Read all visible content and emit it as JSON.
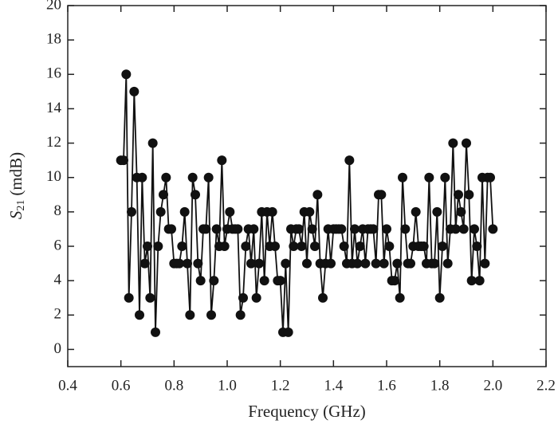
{
  "chart_data": {
    "type": "line",
    "xlabel": "Frequency (GHz)",
    "ylabel": {
      "main": "S",
      "sub": "21",
      "unit": "(mdB)"
    },
    "color": "#111111",
    "marker": "circle",
    "x": [
      0.6,
      0.61,
      0.62,
      0.63,
      0.64,
      0.65,
      0.66,
      0.67,
      0.68,
      0.69,
      0.7,
      0.71,
      0.72,
      0.73,
      0.74,
      0.75,
      0.76,
      0.77,
      0.78,
      0.79,
      0.8,
      0.81,
      0.82,
      0.83,
      0.84,
      0.85,
      0.86,
      0.87,
      0.88,
      0.89,
      0.9,
      0.91,
      0.92,
      0.93,
      0.94,
      0.95,
      0.96,
      0.97,
      0.98,
      0.99,
      1.0,
      1.01,
      1.02,
      1.03,
      1.04,
      1.05,
      1.06,
      1.07,
      1.08,
      1.09,
      1.1,
      1.11,
      1.12,
      1.13,
      1.14,
      1.15,
      1.16,
      1.17,
      1.18,
      1.19,
      1.2,
      1.21,
      1.22,
      1.23,
      1.24,
      1.25,
      1.26,
      1.27,
      1.28,
      1.29,
      1.3,
      1.31,
      1.32,
      1.33,
      1.34,
      1.35,
      1.36,
      1.37,
      1.38,
      1.39,
      1.4,
      1.41,
      1.42,
      1.43,
      1.44,
      1.45,
      1.46,
      1.47,
      1.48,
      1.49,
      1.5,
      1.51,
      1.52,
      1.53,
      1.54,
      1.55,
      1.56,
      1.57,
      1.58,
      1.59,
      1.6,
      1.61,
      1.62,
      1.63,
      1.64,
      1.65,
      1.66,
      1.67,
      1.68,
      1.69,
      1.7,
      1.71,
      1.72,
      1.73,
      1.74,
      1.75,
      1.76,
      1.77,
      1.78,
      1.79,
      1.8,
      1.81,
      1.82,
      1.83,
      1.84,
      1.85,
      1.86,
      1.87,
      1.88,
      1.89,
      1.9,
      1.91,
      1.92,
      1.93,
      1.94,
      1.95,
      1.96,
      1.97,
      1.98,
      1.99,
      2.0
    ],
    "values": [
      11,
      11,
      16,
      3,
      8,
      15,
      10,
      2,
      10,
      5,
      6,
      3,
      12,
      1,
      6,
      8,
      9,
      10,
      7,
      7,
      5,
      5,
      5,
      6,
      8,
      5,
      2,
      10,
      9,
      5,
      4,
      7,
      7,
      10,
      2,
      4,
      7,
      6,
      11,
      6,
      7,
      8,
      7,
      7,
      7,
      2,
      3,
      6,
      7,
      5,
      7,
      3,
      5,
      8,
      4,
      8,
      6,
      8,
      6,
      4,
      4,
      1,
      5,
      1,
      7,
      6,
      7,
      7,
      6,
      8,
      5,
      8,
      7,
      6,
      9,
      5,
      3,
      5,
      7,
      5,
      7,
      7,
      7,
      7,
      6,
      5,
      11,
      5,
      7,
      5,
      6,
      7,
      5,
      7,
      7,
      7,
      5,
      9,
      9,
      5,
      7,
      6,
      4,
      4,
      5,
      3,
      10,
      7,
      5,
      5,
      6,
      8,
      6,
      6,
      6,
      5,
      10,
      5,
      5,
      8,
      3,
      6,
      10,
      5,
      7,
      12,
      7,
      9,
      8,
      7,
      12,
      9,
      4,
      7,
      6,
      4,
      10,
      5,
      10,
      10,
      7
    ],
    "xlim": [
      0.4,
      2.2
    ],
    "xticks": [
      0.4,
      0.6,
      0.8,
      {
        "value": 1,
        "label": "1.0"
      },
      1.2,
      1.4,
      1.6,
      1.8,
      {
        "value": 2,
        "label": "2.0"
      },
      2.2
    ],
    "ylim": [
      -1,
      20
    ],
    "yticks": [
      0,
      2,
      4,
      6,
      8,
      10,
      12,
      14,
      16,
      18,
      20
    ]
  }
}
